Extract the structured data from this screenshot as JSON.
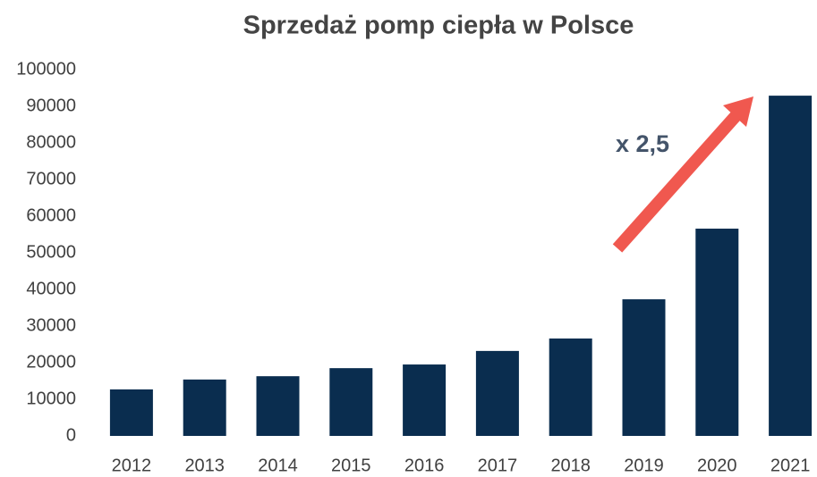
{
  "chart_data": {
    "type": "bar",
    "title": "Sprzedaż pomp ciepła w Polsce",
    "categories": [
      "2012",
      "2013",
      "2014",
      "2015",
      "2016",
      "2017",
      "2018",
      "2019",
      "2020",
      "2021"
    ],
    "values": [
      12700,
      15400,
      16300,
      18500,
      19500,
      23200,
      26600,
      37300,
      56600,
      92900
    ],
    "color": "#0a2d4f",
    "ylim": [
      0,
      100000
    ],
    "yticks": [
      0,
      10000,
      20000,
      30000,
      40000,
      50000,
      60000,
      70000,
      80000,
      90000,
      100000
    ],
    "grid": false,
    "annotation": "x 2,5"
  }
}
